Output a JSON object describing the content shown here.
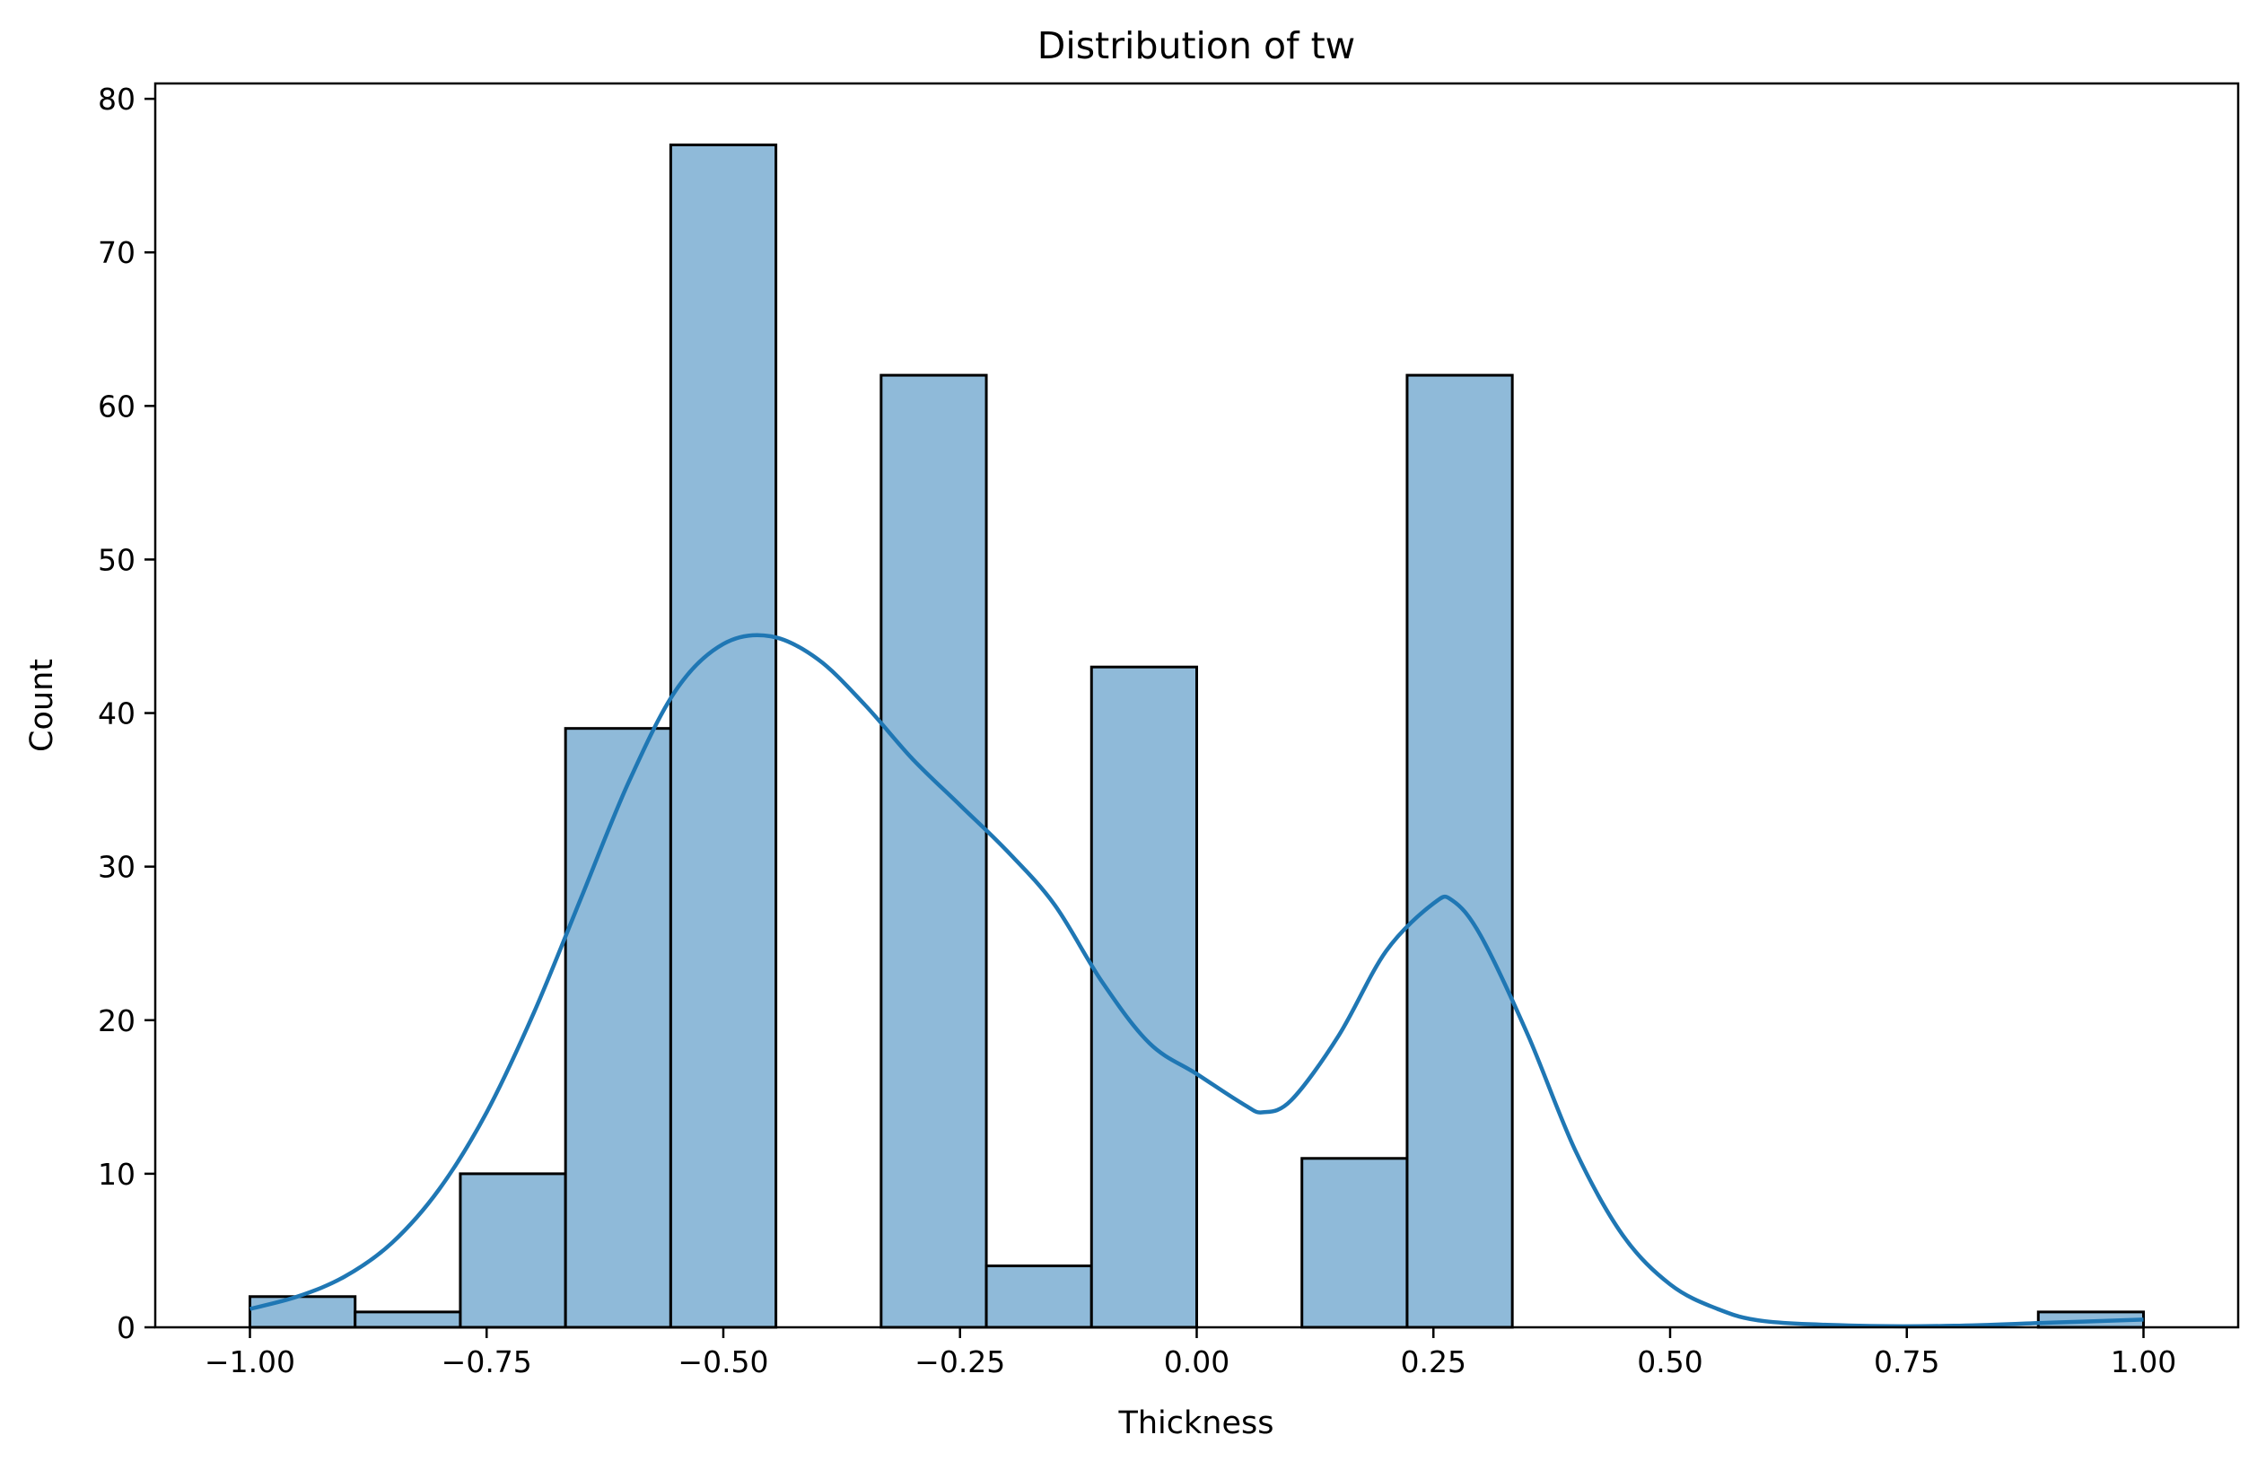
{
  "chart_data": {
    "type": "bar",
    "subtype": "histogram-with-kde",
    "title": "Distribution of tw",
    "xlabel": "Thickness",
    "ylabel": "Count",
    "xlim": [
      -1.1,
      1.1
    ],
    "ylim": [
      0,
      81
    ],
    "x_ticks": [
      -1.0,
      -0.75,
      -0.5,
      -0.25,
      0.0,
      0.25,
      0.5,
      0.75,
      1.0
    ],
    "x_tick_labels": [
      "−1.00",
      "−0.75",
      "−0.50",
      "−0.25",
      "0.00",
      "0.25",
      "0.50",
      "0.75",
      "1.00"
    ],
    "y_ticks": [
      0,
      10,
      20,
      30,
      40,
      50,
      60,
      70,
      80
    ],
    "y_tick_labels": [
      "0",
      "10",
      "20",
      "30",
      "40",
      "50",
      "60",
      "70",
      "80"
    ],
    "bins": {
      "start": -1.0,
      "end": 1.0,
      "count": 18,
      "values": [
        2,
        1,
        10,
        39,
        77,
        0,
        62,
        4,
        43,
        0,
        11,
        62,
        0,
        0,
        0,
        0,
        0,
        1
      ]
    },
    "kde": {
      "x": [
        -1.0,
        -0.95,
        -0.9,
        -0.85,
        -0.8,
        -0.75,
        -0.7,
        -0.65,
        -0.6,
        -0.55,
        -0.5,
        -0.45,
        -0.4,
        -0.35,
        -0.3,
        -0.25,
        -0.2,
        -0.15,
        -0.1,
        -0.05,
        0.0,
        0.05,
        0.07,
        0.1,
        0.15,
        0.2,
        0.25,
        0.27,
        0.3,
        0.35,
        0.4,
        0.45,
        0.5,
        0.55,
        0.6,
        0.7,
        0.8,
        0.9,
        1.0
      ],
      "y": [
        1.2,
        2.0,
        3.3,
        5.5,
        9.0,
        14.0,
        20.5,
        28.0,
        35.5,
        41.5,
        44.5,
        45.0,
        43.5,
        40.5,
        37.0,
        34.0,
        31.0,
        27.5,
        22.5,
        18.5,
        16.5,
        14.5,
        14.0,
        14.8,
        19.0,
        24.5,
        27.6,
        27.8,
        25.5,
        19.0,
        11.5,
        6.0,
        2.8,
        1.2,
        0.4,
        0.1,
        0.1,
        0.3,
        0.5
      ],
      "color": "#1f77b4"
    },
    "bar_color": "#8fbad9",
    "edge_color": "#000000",
    "grid": false,
    "legend": "none"
  }
}
